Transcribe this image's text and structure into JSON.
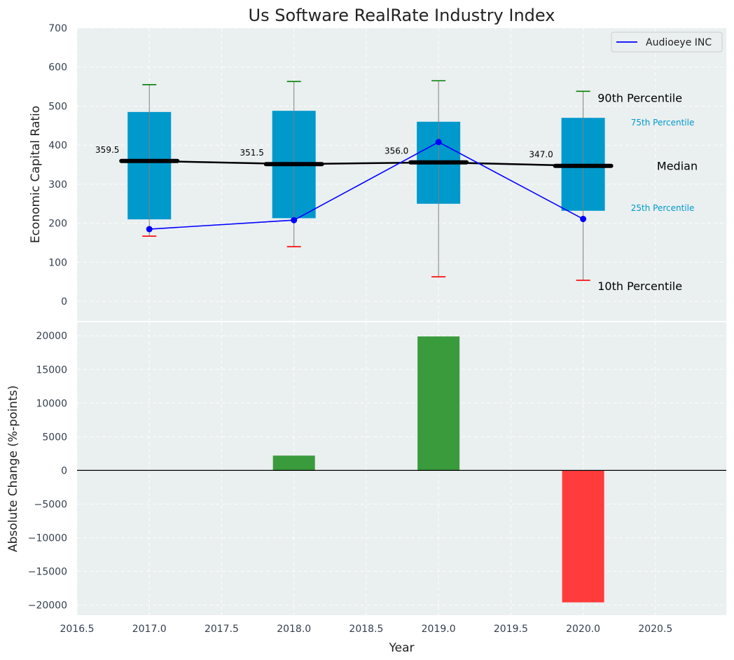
{
  "chart_data": [
    {
      "type": "box",
      "title": "Us Software RealRate Industry Index",
      "ylabel": "Economic Capital Ratio",
      "xlim": [
        2016.5,
        2020.99
      ],
      "ylim": [
        -50,
        700
      ],
      "x_ticks": [
        2016.5,
        2017.0,
        2017.5,
        2018.0,
        2018.5,
        2019.0,
        2019.5,
        2020.0,
        2020.5
      ],
      "y_ticks": [
        0,
        100,
        200,
        300,
        400,
        500,
        600,
        700
      ],
      "grid": true,
      "legend_position": "top-right",
      "colors": {
        "box": "#0099cc",
        "median": "#000000",
        "series": "#0000ff",
        "p90": "#008000",
        "p10": "#ff0000",
        "whisker": "#808080",
        "background": "#eaeff0"
      },
      "boxes": [
        {
          "x": 2017,
          "p10": 167,
          "p25": 210,
          "median": 359.5,
          "p75": 485,
          "p90": 555,
          "median_label": "359.5"
        },
        {
          "x": 2018,
          "p10": 140,
          "p25": 213,
          "median": 351.5,
          "p75": 488,
          "p90": 563,
          "median_label": "351.5"
        },
        {
          "x": 2019,
          "p10": 63,
          "p25": 250,
          "median": 356.0,
          "p75": 460,
          "p90": 565,
          "median_label": "356.0"
        },
        {
          "x": 2020,
          "p10": 54,
          "p25": 232,
          "median": 347.0,
          "p75": 470,
          "p90": 538,
          "median_label": "347.0"
        }
      ],
      "series": [
        {
          "name": "Audioeye INC",
          "x": [
            2017,
            2018,
            2019,
            2020
          ],
          "values": [
            185,
            208,
            408,
            211
          ]
        }
      ],
      "annotations": {
        "p90": "90th Percentile",
        "p75": "75th Percentile",
        "median": "Median",
        "p25": "25th Percentile",
        "p10": "10th Percentile"
      }
    },
    {
      "type": "bar",
      "xlabel": "Year",
      "ylabel": "Absolute Change (%-points)",
      "xlim": [
        2016.5,
        2020.99
      ],
      "ylim": [
        -21500,
        22000
      ],
      "x_ticks": [
        2016.5,
        2017.0,
        2017.5,
        2018.0,
        2018.5,
        2019.0,
        2019.5,
        2020.0,
        2020.5
      ],
      "x_tick_labels": [
        "2016.5",
        "2017.0",
        "2017.5",
        "2018.0",
        "2018.5",
        "2019.0",
        "2019.5",
        "2020.0",
        "2020.5"
      ],
      "y_ticks": [
        -20000,
        -15000,
        -10000,
        -5000,
        0,
        5000,
        10000,
        15000,
        20000
      ],
      "grid": true,
      "colors": {
        "positive": "#3a9b3c",
        "negative": "#ff3b3b"
      },
      "x": [
        2018,
        2019,
        2020
      ],
      "values": [
        2200,
        19900,
        -19600
      ]
    }
  ]
}
